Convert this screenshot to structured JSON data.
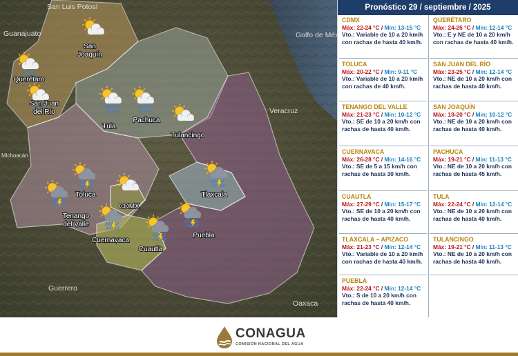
{
  "header": {
    "title": "Pronóstico 29 / septiembre / 2025"
  },
  "map": {
    "regions": [
      "San Luis Potosí",
      "Guanajuato",
      "Golfo de México",
      "Veracruz",
      "Michoacán",
      "Guerrero",
      "Oaxaca"
    ],
    "cities": [
      {
        "name": "San Joaquín",
        "lines": [
          "San",
          "Joaquín"
        ],
        "icon": "sun-cloud-icon"
      },
      {
        "name": "Querétaro",
        "lines": [
          "Querétaro"
        ],
        "icon": "sun-cloud-rain-icon"
      },
      {
        "name": "San Juan del Río",
        "lines": [
          "San Juan",
          "del Río"
        ],
        "icon": "sun-cloud-rain-icon"
      },
      {
        "name": "Tula",
        "lines": [
          "Tula"
        ],
        "icon": "sun-cloud-rain-icon"
      },
      {
        "name": "Pachuca",
        "lines": [
          "Pachuca"
        ],
        "icon": "sun-cloud-rain-icon"
      },
      {
        "name": "Tulancingo",
        "lines": [
          "Tulancingo"
        ],
        "icon": "sun-cloud-icon"
      },
      {
        "name": "Toluca",
        "lines": [
          "Toluca"
        ],
        "icon": "storm-icon"
      },
      {
        "name": "Tenango del Valle",
        "lines": [
          "Tenango",
          "del Valle"
        ],
        "icon": "storm-icon"
      },
      {
        "name": "CDMX",
        "lines": [
          "CDMX"
        ],
        "icon": "sun-cloud-icon"
      },
      {
        "name": "Tlaxcala",
        "lines": [
          "Tlaxcala"
        ],
        "icon": "storm-icon"
      },
      {
        "name": "Cuernavaca",
        "lines": [
          "Cuernavaca"
        ],
        "icon": "storm-icon"
      },
      {
        "name": "Cuautla",
        "lines": [
          "Cuautla"
        ],
        "icon": "storm-icon"
      },
      {
        "name": "Puebla",
        "lines": [
          "Puebla"
        ],
        "icon": "storm-icon"
      }
    ]
  },
  "forecast": {
    "left": [
      {
        "city": "CDMX",
        "max": "Máx: 22-24 °C",
        "min": "Min: 13-15 °C",
        "wind": "Vto.: Variable de 10 a 20 km/h con rachas de hasta 40 km/h."
      },
      {
        "city": "TOLUCA",
        "max": "Máx: 20-22 °C",
        "min": "Min: 9-11 °C",
        "wind": "Vto.: Variable de 10 a 20 km/h con rachas de 40 km/h."
      },
      {
        "city": "TENANGO DEL VALLE",
        "max": "Máx: 21-23 °C",
        "min": "Min: 10-12 °C",
        "wind": "Vto.: SE de 10 a 20 km/h con rachas de hasta 40 km/h."
      },
      {
        "city": "CUERNAVACA",
        "max": "Máx: 26-28 °C",
        "min": "Min: 14-16 °C",
        "wind": "Vto.: SE de 5 a 15 km/h con rachas de hasta 30 km/h."
      },
      {
        "city": "CUAUTLA",
        "max": "Máx: 27-29 °C",
        "min": "Min: 15-17 °C",
        "wind": "Vto.: SE de 10 a 20 km/h con rachas de hasta 40 km/h."
      },
      {
        "city": "TLAXCALA – APIZACO",
        "max": "Máx: 21-23 °C",
        "min": "Min: 12-14 °C",
        "wind": "Vto.: Variable de 10 a 20 km/h con rachas de hasta 40 km/h."
      },
      {
        "city": "PUEBLA",
        "max": "Máx: 22-24 °C",
        "min": "Min: 12-14 °C",
        "wind": "Vto.: S de 10 a 20 km/h con rachas de hasta 40 km/h."
      }
    ],
    "right": [
      {
        "city": "QUERÉTARO",
        "max": "Máx: 24-26 °C",
        "min": "Min: 12-14 °C",
        "wind": "Vto.: E y NE de 10 a 20 km/h con rachas de hasta 40 km/h."
      },
      {
        "city": "SAN JUAN DEL RÍO",
        "max": "Máx: 23-25 °C",
        "min": "Min: 12-14 °C",
        "wind": "Vto.: NE de 10 a 20 km/h con rachas de hasta 40 km/h."
      },
      {
        "city": "SAN JOAQUÍN",
        "max": "Máx: 18-20 °C",
        "min": "Min: 10-12 °C",
        "wind": "Vto.: NE de 10 a 20 km/h con rachas de hasta 40 km/h."
      },
      {
        "city": "PACHUCA",
        "max": "Máx: 19-21 °C",
        "min": "Min: 11-13 °C",
        "wind": "Vto.: NE de 10 a 20 km/h con rachas de hasta 45 km/h."
      },
      {
        "city": "TULA",
        "max": "Máx: 22-24 °C",
        "min": "Min: 12-14 °C",
        "wind": "Vto.: NE de 10 a 20 km/h con rachas de hasta 40 km/h."
      },
      {
        "city": "TULANCINGO",
        "max": "Máx: 19-21 °C",
        "min": "Min: 11-13 °C",
        "wind": "Vto.: NE de 10 a 20 km/h con rachas de hasta 40 km/h."
      }
    ]
  },
  "footer": {
    "logo_text": "CONAGUA",
    "logo_sub": "COMISIÓN NACIONAL DEL AGUA"
  },
  "colors": {
    "header_bg": "#1f3d6b",
    "city_name": "#b8860b",
    "max_temp": "#c0151c",
    "min_temp": "#1a7fc1",
    "footer_bar": "#a07a2c"
  }
}
